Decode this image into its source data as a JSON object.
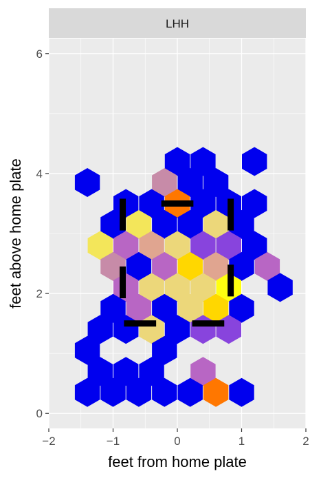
{
  "chart_data": {
    "type": "hexbin",
    "facet_label": "LHH",
    "xlabel": "feet from home plate",
    "ylabel": "feet above home plate",
    "xlim": [
      -2.0,
      2.0
    ],
    "ylim": [
      -0.25,
      6.25
    ],
    "x_ticks": [
      -2,
      -1,
      0,
      1,
      2
    ],
    "x_tick_labels": [
      "−2",
      "−1",
      "0",
      "1",
      "2"
    ],
    "y_ticks": [
      0,
      2,
      4,
      6
    ],
    "y_tick_labels": [
      "0",
      "2",
      "4",
      "6"
    ],
    "colors": {
      "panel_bg": "#ebebeb",
      "grid_major": "#ffffff",
      "strip_bg": "#d9d9d9",
      "blue": "#0000ee",
      "purple": "#8844dd",
      "mauve": "#b866c4",
      "pink": "#c78ba8",
      "tan": "#e0a590",
      "lightyellow": "#ecd77a",
      "yellow": "#f3e65a",
      "gold": "#ffd700",
      "orange": "#ff7700",
      "brightyellow": "#ffff10"
    },
    "hexagons": [
      {
        "x": 0.0,
        "y": 4.2,
        "c": "blue"
      },
      {
        "x": 0.4,
        "y": 4.2,
        "c": "blue"
      },
      {
        "x": 1.2,
        "y": 4.2,
        "c": "blue"
      },
      {
        "x": -1.4,
        "y": 3.85,
        "c": "blue"
      },
      {
        "x": -0.2,
        "y": 3.85,
        "c": "pink"
      },
      {
        "x": 0.2,
        "y": 3.85,
        "c": "blue"
      },
      {
        "x": 0.6,
        "y": 3.85,
        "c": "blue"
      },
      {
        "x": -0.8,
        "y": 3.5,
        "c": "blue"
      },
      {
        "x": -0.4,
        "y": 3.5,
        "c": "blue"
      },
      {
        "x": 0.0,
        "y": 3.5,
        "c": "orange"
      },
      {
        "x": 0.4,
        "y": 3.5,
        "c": "blue"
      },
      {
        "x": 0.8,
        "y": 3.5,
        "c": "blue"
      },
      {
        "x": 1.2,
        "y": 3.5,
        "c": "blue"
      },
      {
        "x": -1.0,
        "y": 3.15,
        "c": "blue"
      },
      {
        "x": -0.6,
        "y": 3.15,
        "c": "yellow"
      },
      {
        "x": -0.2,
        "y": 3.15,
        "c": "blue"
      },
      {
        "x": 0.2,
        "y": 3.15,
        "c": "blue"
      },
      {
        "x": 0.6,
        "y": 3.15,
        "c": "lightyellow"
      },
      {
        "x": 1.0,
        "y": 3.15,
        "c": "blue"
      },
      {
        "x": -1.2,
        "y": 2.8,
        "c": "yellow"
      },
      {
        "x": -0.8,
        "y": 2.8,
        "c": "mauve"
      },
      {
        "x": -0.4,
        "y": 2.8,
        "c": "tan"
      },
      {
        "x": 0.0,
        "y": 2.8,
        "c": "lightyellow"
      },
      {
        "x": 0.4,
        "y": 2.8,
        "c": "purple"
      },
      {
        "x": 0.8,
        "y": 2.8,
        "c": "purple"
      },
      {
        "x": 1.2,
        "y": 2.8,
        "c": "blue"
      },
      {
        "x": -1.0,
        "y": 2.45,
        "c": "pink"
      },
      {
        "x": -0.6,
        "y": 2.45,
        "c": "blue"
      },
      {
        "x": -0.2,
        "y": 2.45,
        "c": "mauve"
      },
      {
        "x": 0.2,
        "y": 2.45,
        "c": "gold"
      },
      {
        "x": 0.6,
        "y": 2.45,
        "c": "tan"
      },
      {
        "x": 1.0,
        "y": 2.45,
        "c": "blue"
      },
      {
        "x": 1.4,
        "y": 2.45,
        "c": "mauve"
      },
      {
        "x": -0.8,
        "y": 2.1,
        "c": "mauve"
      },
      {
        "x": -0.4,
        "y": 2.1,
        "c": "lightyellow"
      },
      {
        "x": 0.0,
        "y": 2.1,
        "c": "lightyellow"
      },
      {
        "x": 0.4,
        "y": 2.1,
        "c": "lightyellow"
      },
      {
        "x": 0.8,
        "y": 2.1,
        "c": "brightyellow"
      },
      {
        "x": 1.6,
        "y": 2.1,
        "c": "blue"
      },
      {
        "x": -1.0,
        "y": 1.75,
        "c": "blue"
      },
      {
        "x": -0.6,
        "y": 1.75,
        "c": "mauve"
      },
      {
        "x": -0.2,
        "y": 1.75,
        "c": "blue"
      },
      {
        "x": 0.2,
        "y": 1.75,
        "c": "lightyellow"
      },
      {
        "x": 0.6,
        "y": 1.75,
        "c": "gold"
      },
      {
        "x": 1.0,
        "y": 1.75,
        "c": "blue"
      },
      {
        "x": -1.2,
        "y": 1.4,
        "c": "blue"
      },
      {
        "x": -0.8,
        "y": 1.4,
        "c": "blue"
      },
      {
        "x": -0.4,
        "y": 1.4,
        "c": "lightyellow"
      },
      {
        "x": 0.0,
        "y": 1.4,
        "c": "blue"
      },
      {
        "x": 0.4,
        "y": 1.4,
        "c": "purple"
      },
      {
        "x": 0.8,
        "y": 1.4,
        "c": "purple"
      },
      {
        "x": -1.4,
        "y": 1.05,
        "c": "blue"
      },
      {
        "x": -0.2,
        "y": 1.05,
        "c": "blue"
      },
      {
        "x": -1.2,
        "y": 0.7,
        "c": "blue"
      },
      {
        "x": -0.8,
        "y": 0.7,
        "c": "blue"
      },
      {
        "x": -0.4,
        "y": 0.7,
        "c": "blue"
      },
      {
        "x": 0.4,
        "y": 0.7,
        "c": "mauve"
      },
      {
        "x": -1.4,
        "y": 0.35,
        "c": "blue"
      },
      {
        "x": -1.0,
        "y": 0.35,
        "c": "blue"
      },
      {
        "x": -0.6,
        "y": 0.35,
        "c": "blue"
      },
      {
        "x": -0.2,
        "y": 0.35,
        "c": "blue"
      },
      {
        "x": 0.2,
        "y": 0.35,
        "c": "blue"
      },
      {
        "x": 0.6,
        "y": 0.35,
        "c": "orange"
      },
      {
        "x": 1.0,
        "y": 0.35,
        "c": "blue"
      }
    ],
    "zone_segments": [
      {
        "x1": -0.85,
        "y1": 3.58,
        "x2": -0.85,
        "y2": 3.05
      },
      {
        "x1": -0.25,
        "y1": 3.5,
        "x2": 0.25,
        "y2": 3.5
      },
      {
        "x1": 0.83,
        "y1": 3.58,
        "x2": 0.83,
        "y2": 3.05
      },
      {
        "x1": -0.85,
        "y1": 2.45,
        "x2": -0.85,
        "y2": 1.92
      },
      {
        "x1": 0.83,
        "y1": 2.48,
        "x2": 0.83,
        "y2": 1.95
      },
      {
        "x1": -0.83,
        "y1": 1.5,
        "x2": -0.33,
        "y2": 1.5
      },
      {
        "x1": 0.23,
        "y1": 1.5,
        "x2": 0.73,
        "y2": 1.5
      }
    ]
  }
}
